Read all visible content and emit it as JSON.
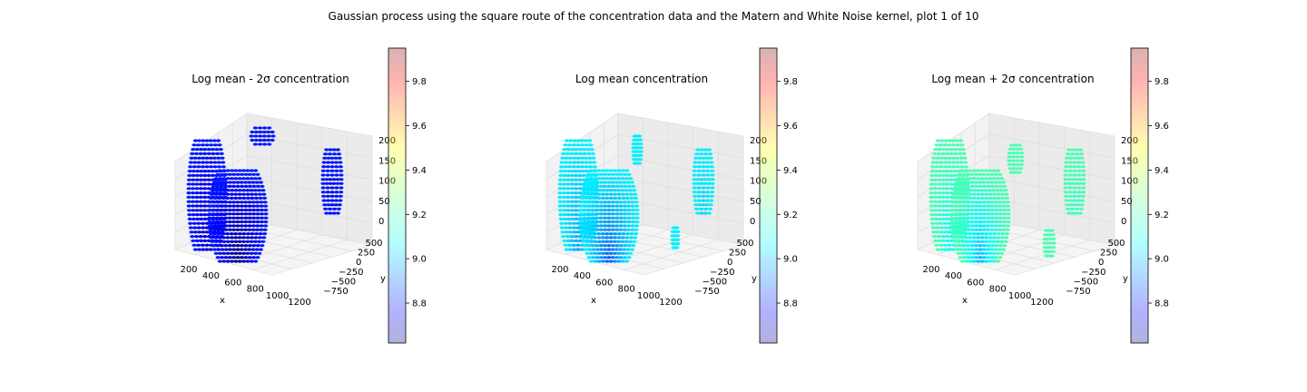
{
  "figure": {
    "suptitle": "Gaussian process using the square route of the concentration data and the Matern and White Noise kernel, plot 1 of 10"
  },
  "chart_data": [
    {
      "type": "scatter3d",
      "title": "Log mean - 2σ concentration",
      "xlabel": "x",
      "ylabel": "y",
      "zlabel": "",
      "x_ticks": [
        "200",
        "400",
        "600",
        "800",
        "1000",
        "1200"
      ],
      "y_ticks": [
        "−750",
        "−500",
        "−250",
        "0",
        "250",
        "500"
      ],
      "z_ticks": [
        "0",
        "50",
        "100",
        "150",
        "200"
      ],
      "xlim": [
        100,
        1200
      ],
      "ylim": [
        -900,
        650
      ],
      "zlim": [
        0,
        220
      ],
      "colorbar": {
        "ticks": [
          "8.8",
          "9.0",
          "9.2",
          "9.4",
          "9.6",
          "9.8"
        ],
        "range": [
          8.62,
          9.95
        ],
        "colormap": "jet",
        "alpha": 0.3
      },
      "value_level": 0.15
    },
    {
      "type": "scatter3d",
      "title": "Log mean concentration",
      "xlabel": "x",
      "ylabel": "y",
      "zlabel": "",
      "x_ticks": [
        "200",
        "400",
        "600",
        "800",
        "1000",
        "1200"
      ],
      "y_ticks": [
        "−750",
        "−500",
        "−250",
        "0",
        "250",
        "500"
      ],
      "z_ticks": [
        "0",
        "50",
        "100",
        "150",
        "200"
      ],
      "xlim": [
        100,
        1200
      ],
      "ylim": [
        -900,
        650
      ],
      "zlim": [
        0,
        220
      ],
      "colorbar": {
        "ticks": [
          "8.8",
          "9.0",
          "9.2",
          "9.4",
          "9.6",
          "9.8"
        ],
        "range": [
          8.62,
          9.95
        ],
        "colormap": "jet",
        "alpha": 0.3
      },
      "value_level": 0.36
    },
    {
      "type": "scatter3d",
      "title": "Log mean + 2σ concentration",
      "xlabel": "x",
      "ylabel": "y",
      "zlabel": "",
      "x_ticks": [
        "200",
        "400",
        "600",
        "800",
        "1000",
        "1200"
      ],
      "y_ticks": [
        "−750",
        "−500",
        "−250",
        "0",
        "250",
        "500"
      ],
      "z_ticks": [
        "0",
        "50",
        "100",
        "150",
        "200"
      ],
      "xlim": [
        100,
        1200
      ],
      "ylim": [
        -900,
        650
      ],
      "zlim": [
        0,
        220
      ],
      "colorbar": {
        "ticks": [
          "8.8",
          "9.0",
          "9.2",
          "9.4",
          "9.6",
          "9.8"
        ],
        "range": [
          8.62,
          9.95
        ],
        "colormap": "jet",
        "alpha": 0.3
      },
      "value_level": 0.45
    }
  ]
}
